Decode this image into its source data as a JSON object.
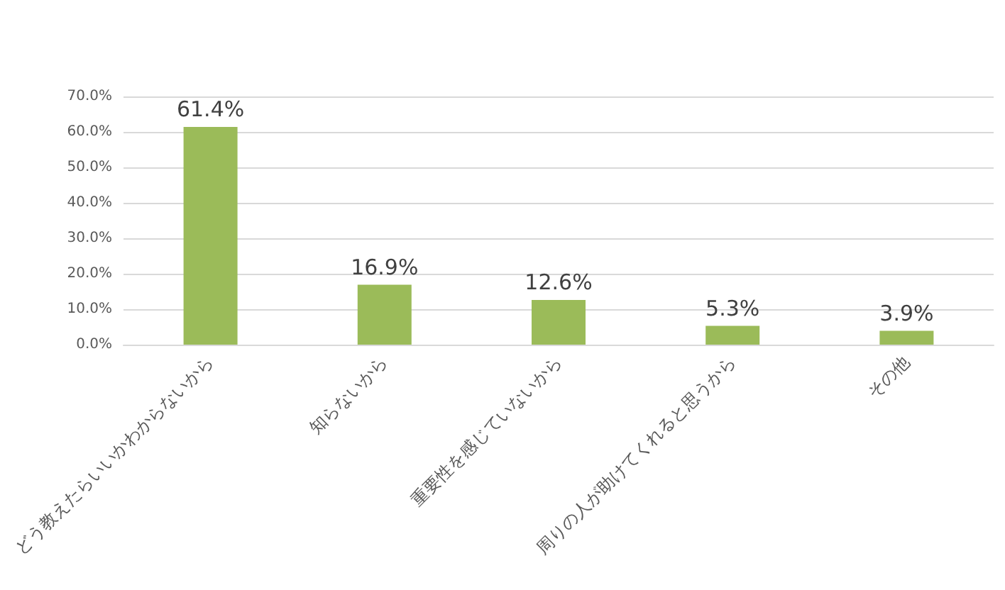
{
  "chart_data": {
    "type": "bar",
    "categories": [
      "どう教えたらいいかわからないから",
      "知らないから",
      "重要性を感じていないから",
      "周りの人が助けてくれると思うから",
      "その他"
    ],
    "values": [
      61.4,
      16.9,
      12.6,
      5.3,
      3.9
    ],
    "value_labels": [
      "61.4%",
      "16.9%",
      "12.6%",
      "5.3%",
      "3.9%"
    ],
    "color": "#9bbb59",
    "ylim": [
      0,
      70
    ],
    "yticks": [
      {
        "value": 0,
        "label": "0.0%"
      },
      {
        "value": 10,
        "label": "10.0%"
      },
      {
        "value": 20,
        "label": "20.0%"
      },
      {
        "value": 30,
        "label": "30.0%"
      },
      {
        "value": 40,
        "label": "40.0%"
      },
      {
        "value": 50,
        "label": "50.0%"
      },
      {
        "value": 60,
        "label": "60.0%"
      },
      {
        "value": 70,
        "label": "70.0%"
      }
    ],
    "grid": "y"
  }
}
